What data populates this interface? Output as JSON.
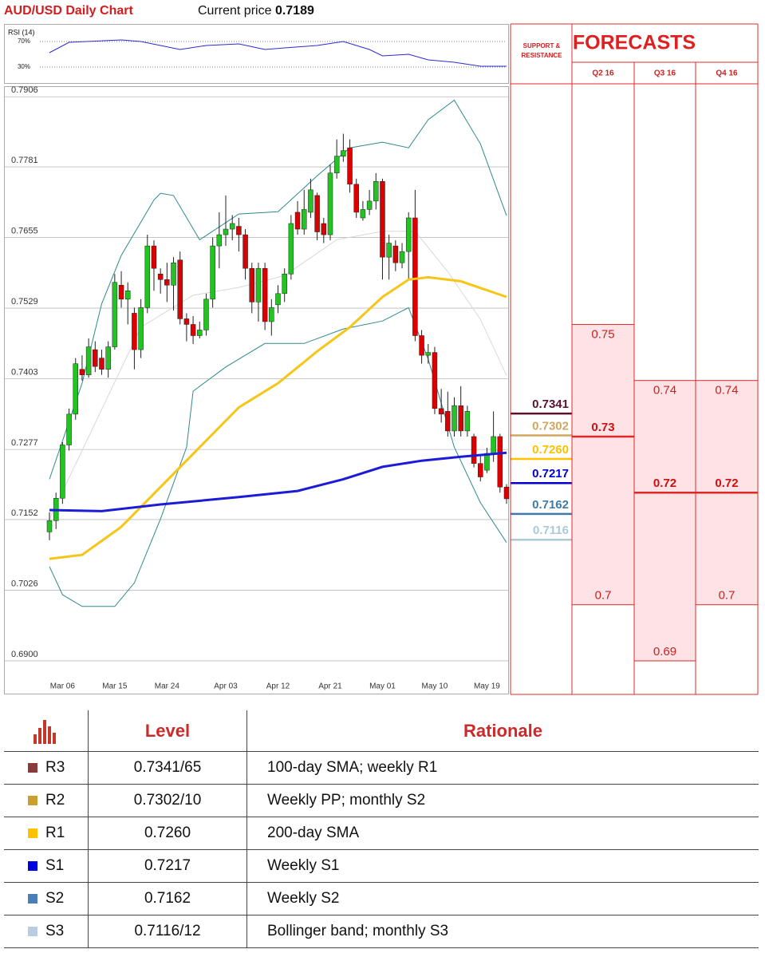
{
  "header": {
    "title": "AUD/USD Daily Chart",
    "price_label": "Current price",
    "price": 0.7189
  },
  "chart_data": [
    {
      "type": "line",
      "title": "RSI (14)",
      "color": "#2b2bd0",
      "xlim": [
        0,
        70
      ],
      "ylim": [
        10,
        90
      ],
      "yticks": [
        {
          "value": 70,
          "label": "70%"
        },
        {
          "value": 30,
          "label": "30%"
        }
      ],
      "x": [
        0,
        3,
        11,
        14,
        17,
        20,
        24,
        29,
        33,
        36,
        41,
        45,
        49,
        51,
        55,
        58,
        62,
        66,
        70
      ],
      "values": [
        52.5,
        68.8,
        72.5,
        70,
        63.8,
        57.5,
        63.8,
        66.3,
        57.5,
        60,
        63.8,
        70,
        57.5,
        47.5,
        50,
        41.3,
        37.5,
        31.3,
        31.3
      ]
    },
    {
      "type": "candlestick",
      "up_color": "#22c322",
      "down_color": "#dd0000",
      "xlim": [
        0,
        70
      ],
      "ylim": [
        0.6885,
        0.7922
      ],
      "grid": true,
      "yticks": [
        0.7906,
        0.7781,
        0.7655,
        0.7529,
        0.7403,
        0.7277,
        0.7152,
        0.7026,
        {
          "value": 0.69,
          "label": "0.6900"
        }
      ],
      "categories": [
        null,
        null,
        "Mar 06",
        null,
        null,
        null,
        null,
        null,
        null,
        null,
        "Mar 15",
        null,
        null,
        null,
        null,
        null,
        null,
        null,
        "Mar 24",
        null,
        null,
        null,
        null,
        null,
        null,
        null,
        null,
        "Apr 03",
        null,
        null,
        null,
        null,
        null,
        null,
        null,
        "Apr 12",
        null,
        null,
        null,
        null,
        null,
        null,
        null,
        "Apr 21",
        null,
        null,
        null,
        null,
        null,
        null,
        null,
        "May 01",
        null,
        null,
        null,
        null,
        null,
        null,
        null,
        "May 10",
        null,
        null,
        null,
        null,
        null,
        null,
        null,
        "May 19",
        null,
        null,
        null
      ],
      "open": [
        0.713,
        0.715,
        0.719,
        0.7285,
        0.734,
        0.742,
        0.741,
        0.7455,
        0.744,
        0.742,
        0.746,
        0.757,
        0.7545,
        0.752,
        0.7455,
        0.753,
        0.764,
        0.759,
        0.758,
        0.757,
        0.7615,
        0.751,
        0.75,
        0.748,
        0.749,
        0.7545,
        0.764,
        0.766,
        0.767,
        0.7675,
        0.766,
        0.76,
        0.754,
        0.76,
        0.7505,
        0.7535,
        0.7555,
        0.759,
        0.77,
        0.767,
        0.77,
        0.773,
        0.768,
        0.766,
        0.777,
        0.78,
        0.7815,
        0.775,
        0.769,
        0.7705,
        0.772,
        0.7755,
        0.762,
        0.764,
        0.761,
        0.763,
        0.769,
        0.748,
        0.7445,
        0.745,
        0.735,
        0.7345,
        0.731,
        0.7355,
        0.731,
        0.73,
        0.7252,
        0.724,
        0.727,
        0.73,
        0.721
      ],
      "high": [
        0.7165,
        0.72,
        0.729,
        0.735,
        0.744,
        0.7445,
        0.7475,
        0.747,
        0.7455,
        0.747,
        0.759,
        0.7595,
        0.7575,
        0.753,
        0.7545,
        0.766,
        0.765,
        0.76,
        0.761,
        0.762,
        0.763,
        0.752,
        0.7515,
        0.7505,
        0.7555,
        0.7655,
        0.77,
        0.773,
        0.7695,
        0.769,
        0.767,
        0.761,
        0.761,
        0.761,
        0.7545,
        0.757,
        0.76,
        0.7695,
        0.772,
        0.774,
        0.776,
        0.7735,
        0.769,
        0.7785,
        0.783,
        0.784,
        0.783,
        0.776,
        0.772,
        0.774,
        0.777,
        0.776,
        0.766,
        0.765,
        0.7645,
        0.77,
        0.774,
        0.749,
        0.7465,
        0.746,
        0.7385,
        0.738,
        0.737,
        0.739,
        0.7355,
        0.7305,
        0.7265,
        0.728,
        0.7345,
        0.7305,
        0.7215
      ],
      "low": [
        0.7115,
        0.7135,
        0.718,
        0.7275,
        0.733,
        0.74,
        0.7405,
        0.7415,
        0.741,
        0.7405,
        0.7455,
        0.753,
        0.75,
        0.742,
        0.744,
        0.752,
        0.756,
        0.7555,
        0.754,
        0.7525,
        0.75,
        0.747,
        0.7465,
        0.7475,
        0.748,
        0.753,
        0.76,
        0.764,
        0.765,
        0.763,
        0.758,
        0.752,
        0.7505,
        0.749,
        0.748,
        0.752,
        0.754,
        0.758,
        0.766,
        0.766,
        0.769,
        0.765,
        0.7645,
        0.765,
        0.776,
        0.779,
        0.7735,
        0.769,
        0.7685,
        0.7695,
        0.7705,
        0.758,
        0.758,
        0.7595,
        0.76,
        0.758,
        0.747,
        0.743,
        0.743,
        0.734,
        0.7325,
        0.73,
        0.73,
        0.73,
        0.73,
        0.7245,
        0.722,
        0.7235,
        0.7255,
        0.72,
        0.718
      ],
      "close": [
        0.715,
        0.719,
        0.7285,
        0.734,
        0.743,
        0.741,
        0.746,
        0.7425,
        0.742,
        0.746,
        0.7575,
        0.7545,
        0.756,
        0.7455,
        0.753,
        0.764,
        0.76,
        0.758,
        0.757,
        0.761,
        0.751,
        0.75,
        0.748,
        0.749,
        0.7545,
        0.764,
        0.766,
        0.767,
        0.768,
        0.766,
        0.76,
        0.754,
        0.76,
        0.7505,
        0.753,
        0.7555,
        0.759,
        0.768,
        0.767,
        0.7705,
        0.774,
        0.7665,
        0.766,
        0.777,
        0.78,
        0.781,
        0.775,
        0.77,
        0.7705,
        0.772,
        0.7755,
        0.762,
        0.7645,
        0.761,
        0.763,
        0.769,
        0.748,
        0.7445,
        0.745,
        0.735,
        0.734,
        0.731,
        0.7355,
        0.731,
        0.7345,
        0.7252,
        0.7228,
        0.727,
        0.73,
        0.721,
        0.7189
      ],
      "overlays": [
        {
          "color": "#d8d8d8",
          "width": 1,
          "x": [
            0,
            7,
            14,
            22,
            29,
            36,
            44,
            51,
            56,
            61,
            66,
            70
          ],
          "values": [
            0.7153,
            0.7324,
            0.7495,
            0.7552,
            0.7566,
            0.7587,
            0.7651,
            0.7666,
            0.7666,
            0.7594,
            0.7509,
            0.7409
          ]
        },
        {
          "color": "#2f8a8a",
          "width": 1,
          "x": [
            0,
            5,
            8,
            11,
            16,
            17,
            19,
            23,
            29,
            35,
            41,
            46,
            51,
            55,
            58,
            62,
            66,
            70
          ],
          "values": [
            0.7224,
            0.7395,
            0.7537,
            0.7623,
            0.7722,
            0.7734,
            0.773,
            0.7651,
            0.7697,
            0.7701,
            0.7765,
            0.7815,
            0.7825,
            0.7815,
            0.7865,
            0.79,
            0.7822,
            0.7694
          ]
        },
        {
          "color": "#2f8a8a",
          "width": 1,
          "x": [
            0,
            2,
            5,
            10,
            13,
            17,
            21,
            22,
            27,
            33,
            39,
            45,
            51,
            55,
            58,
            62,
            66,
            70
          ],
          "values": [
            0.7068,
            0.7018,
            0.6997,
            0.6997,
            0.7039,
            0.7153,
            0.7281,
            0.7381,
            0.7424,
            0.7466,
            0.7466,
            0.7492,
            0.7506,
            0.753,
            0.7438,
            0.7281,
            0.7182,
            0.7111
          ]
        },
        {
          "color": "#f5c518",
          "width": 3,
          "x": [
            0,
            5,
            11,
            17,
            23,
            29,
            35,
            41,
            46,
            51,
            55,
            58,
            63,
            70
          ],
          "values": [
            0.7082,
            0.7089,
            0.7139,
            0.721,
            0.7281,
            0.7352,
            0.7395,
            0.7452,
            0.7495,
            0.7549,
            0.758,
            0.7584,
            0.7577,
            0.7549
          ]
        },
        {
          "color": "#1c1cd8",
          "width": 3,
          "x": [
            0,
            8,
            17,
            29,
            38,
            45,
            51,
            57,
            63,
            70
          ],
          "values": [
            0.7169,
            0.7167,
            0.7179,
            0.7192,
            0.7203,
            0.7224,
            0.7246,
            0.7257,
            0.7264,
            0.7271
          ]
        }
      ]
    }
  ],
  "support_resistance": {
    "title": "SUPPORT & RESISTANCE",
    "levels": [
      {
        "value": 0.7341,
        "color": "#5c1030"
      },
      {
        "value": 0.7302,
        "color": "#d2a660"
      },
      {
        "value": 0.726,
        "value_label": "0.7260",
        "color": "#ffc000"
      },
      {
        "value": 0.7217,
        "color": "#0000cc"
      },
      {
        "value": 0.7162,
        "color": "#3f7aa8"
      },
      {
        "value": 0.7116,
        "color": "#aacbd6"
      }
    ]
  },
  "forecasts": {
    "title": "FORECASTS",
    "columns": [
      {
        "label": "Q2 16",
        "high": 0.75,
        "mid": 0.73,
        "low": 0.7
      },
      {
        "label": "Q3 16",
        "high": 0.74,
        "mid": 0.72,
        "low": 0.69
      },
      {
        "label": "Q4 16",
        "high": 0.74,
        "mid": 0.72,
        "low": 0.7
      }
    ]
  },
  "table": {
    "header": [
      "Level",
      "Rationale"
    ],
    "rows": [
      {
        "name": "R3",
        "level": "0.7341/65",
        "rationale": "100-day SMA; weekly R1",
        "color": "#8b3a3a"
      },
      {
        "name": "R2",
        "level": "0.7302/10",
        "rationale": "Weekly PP; monthly S2",
        "color": "#c9a030"
      },
      {
        "name": "R1",
        "level": "0.7260",
        "rationale": "200-day SMA",
        "color": "#ffc000"
      },
      {
        "name": "S1",
        "level": "0.7217",
        "rationale": "Weekly S1",
        "color": "#0000e0"
      },
      {
        "name": "S2",
        "level": "0.7162",
        "rationale": "Weekly S2",
        "color": "#4a7eb8"
      },
      {
        "name": "S3",
        "level": "0.7116/12",
        "rationale": "Bollinger band; monthly S3",
        "color": "#b8cde0"
      }
    ]
  }
}
